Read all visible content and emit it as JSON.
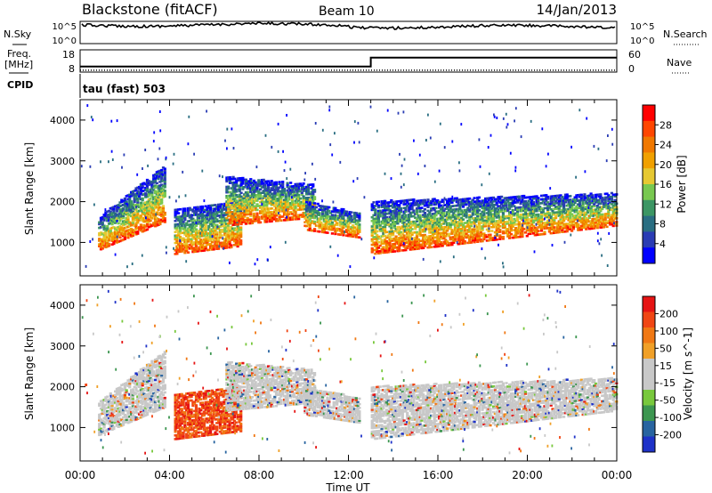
{
  "header": {
    "title": "Blackstone (fitACF)",
    "beam": "Beam 10",
    "date": "14/Jan/2013"
  },
  "strip_labels": {
    "nsky": "N.Sky",
    "nsearch": "N.Search",
    "freq": "Freq.",
    "mhz": "[MHz]",
    "nave": "Nave",
    "cpid": "CPID",
    "cpid_value": "tau (fast) 503"
  },
  "strip_ticks": {
    "noise_left": [
      "10^5",
      "10^0"
    ],
    "noise_right": [
      "10^5",
      "10^0"
    ],
    "freq_left": [
      "18",
      "8"
    ],
    "nave_right": [
      "60",
      "0"
    ]
  },
  "colors": {
    "power": [
      "#0000ff",
      "#2a3cb4",
      "#2a6e82",
      "#3c9664",
      "#78c850",
      "#e6c832",
      "#f0a000",
      "#f07800",
      "#ff4600",
      "#ff0000"
    ],
    "velocity": [
      "#1e32c8",
      "#2864a0",
      "#3c9650",
      "#78c83c",
      "#c8c8c8",
      "#c8c8c8",
      "#f0a028",
      "#f07814",
      "#f04614",
      "#e61414"
    ]
  },
  "chart_data": [
    {
      "type": "heatmap",
      "name": "power",
      "ylabel": "Slant Range [km]",
      "xlabel": "Time UT",
      "x_ticks": [
        "00:00",
        "04:00",
        "08:00",
        "12:00",
        "16:00",
        "20:00",
        "00:00"
      ],
      "xlim_hours": [
        0,
        24
      ],
      "ylim_km": [
        180,
        4500
      ],
      "y_ticks": [
        "1000",
        "2000",
        "3000",
        "4000"
      ],
      "y_tick_values": [
        1000,
        2000,
        3000,
        4000
      ],
      "colorbar_label": "Power [dB]",
      "colorbar_ticks": [
        "28",
        "24",
        "20",
        "16",
        "12",
        "8",
        "4"
      ],
      "colorbar_values": [
        28,
        24,
        20,
        16,
        12,
        8,
        4
      ],
      "echo_bands": [
        {
          "t0": 0.8,
          "t1": 3.8,
          "r0": 800,
          "r1": 1600,
          "r_end0": 1500,
          "r_end1": 2900
        },
        {
          "t0": 4.2,
          "t1": 7.2,
          "r0": 700,
          "r1": 1800,
          "r_end0": 900,
          "r_end1": 2000
        },
        {
          "t0": 6.5,
          "t1": 10.5,
          "r0": 1400,
          "r1": 2600,
          "r_end0": 1600,
          "r_end1": 2400
        },
        {
          "t0": 10.0,
          "t1": 12.5,
          "r0": 1300,
          "r1": 2000,
          "r_end0": 1100,
          "r_end1": 1700
        },
        {
          "t0": 13.0,
          "t1": 24.0,
          "r0": 700,
          "r1": 2000,
          "r_end0": 1400,
          "r_end1": 2200
        }
      ]
    },
    {
      "type": "heatmap",
      "name": "velocity",
      "ylabel": "Slant Range [km]",
      "xlabel": "Time UT",
      "x_ticks": [
        "00:00",
        "04:00",
        "08:00",
        "12:00",
        "16:00",
        "20:00",
        "00:00"
      ],
      "xlim_hours": [
        0,
        24
      ],
      "ylim_km": [
        180,
        4500
      ],
      "y_ticks": [
        "1000",
        "2000",
        "3000",
        "4000"
      ],
      "y_tick_values": [
        1000,
        2000,
        3000,
        4000
      ],
      "colorbar_label": "Velocity [m s^-1]",
      "colorbar_ticks": [
        "200",
        "100",
        "50",
        "15",
        "-15",
        "-50",
        "-100",
        "-200"
      ],
      "colorbar_values": [
        200,
        100,
        50,
        15,
        -15,
        -50,
        -100,
        -200
      ],
      "echo_bands": [
        {
          "t0": 0.8,
          "t1": 3.8,
          "r0": 800,
          "r1": 1600,
          "r_end0": 1500,
          "r_end1": 2900
        },
        {
          "t0": 4.2,
          "t1": 7.2,
          "r0": 700,
          "r1": 1800,
          "r_end0": 900,
          "r_end1": 2000
        },
        {
          "t0": 6.5,
          "t1": 10.5,
          "r0": 1400,
          "r1": 2600,
          "r_end0": 1600,
          "r_end1": 2400
        },
        {
          "t0": 10.0,
          "t1": 12.5,
          "r0": 1300,
          "r1": 2000,
          "r_end0": 1100,
          "r_end1": 1700
        },
        {
          "t0": 13.0,
          "t1": 24.0,
          "r0": 700,
          "r1": 2000,
          "r_end0": 1400,
          "r_end1": 2200
        }
      ]
    },
    {
      "type": "line",
      "name": "frequency",
      "units": "MHz",
      "x_hours": [
        0,
        13,
        13,
        24
      ],
      "values": [
        10.5,
        10.5,
        14.5,
        14.5
      ]
    },
    {
      "type": "line",
      "name": "nave",
      "x_hours": [
        0,
        24
      ],
      "values": [
        5,
        5
      ]
    }
  ]
}
